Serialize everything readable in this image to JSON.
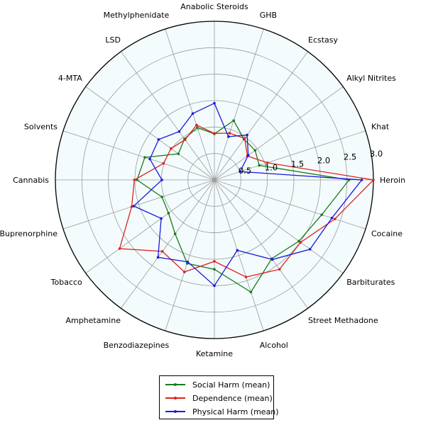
{
  "chart_data": {
    "type": "radar",
    "categories": [
      "Heroin",
      "Cocaine",
      "Barbiturates",
      "Street Methadone",
      "Alcohol",
      "Ketamine",
      "Benzodiazepines",
      "Amphetamine",
      "Tobacco",
      "Buprenorphine",
      "Cannabis",
      "Solvents",
      "4-MTA",
      "LSD",
      "Methylphenidate",
      "Anabolic Steroids",
      "GHB",
      "Ecstasy",
      "Alkyl Nitrites",
      "Khat"
    ],
    "rlim": [
      0,
      3.0
    ],
    "rticks": [
      "0.5",
      "1.0",
      "1.5",
      "2.0",
      "2.5",
      "3.0"
    ],
    "grid": true,
    "legend_position": "bottom-center",
    "series": [
      {
        "name": "Social Harm (mean)",
        "color": "#1a7a1a",
        "values": [
          2.54,
          2.13,
          1.97,
          1.84,
          2.23,
          1.69,
          1.66,
          1.26,
          1.07,
          1.04,
          1.46,
          1.38,
          0.84,
          0.96,
          1.04,
          0.87,
          1.18,
          0.95,
          0.95,
          0.89
        ]
      },
      {
        "name": "Dependence (mean)",
        "color": "#dd2020",
        "values": [
          3.0,
          2.39,
          2.01,
          2.09,
          1.93,
          1.54,
          1.83,
          1.67,
          2.21,
          1.64,
          1.51,
          1.01,
          1.01,
          0.94,
          1.09,
          0.88,
          0.93,
          0.97,
          0.77,
          1.05
        ]
      },
      {
        "name": "Physical Harm (mean)",
        "color": "#1a1ad8",
        "values": [
          2.78,
          2.33,
          2.23,
          1.86,
          1.4,
          2.0,
          1.63,
          1.81,
          1.24,
          1.6,
          0.99,
          1.28,
          1.3,
          1.13,
          1.32,
          1.45,
          0.86,
          1.05,
          0.79,
          0.51
        ]
      }
    ]
  }
}
